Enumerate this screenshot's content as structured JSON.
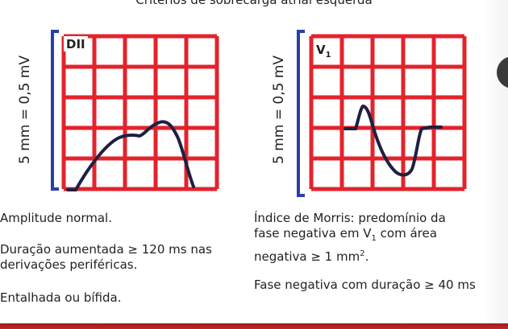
{
  "title": "Critérios de sobrecarga atrial esquerda",
  "panels": [
    {
      "lead": "DII",
      "lead_sub": "",
      "scale_label": "5 mm = 0,5 mV",
      "grid_color": "#e3232c",
      "trace_color": "#1f2040",
      "scale_color": "#2b3fa8"
    },
    {
      "lead": "V",
      "lead_sub": "1",
      "scale_label": "5 mm = 0,5 mV",
      "grid_color": "#e3232c",
      "trace_color": "#1f2040",
      "scale_color": "#2b3fa8"
    }
  ],
  "left_text": {
    "p1": "Amplitude normal.",
    "p2a": "Duração aumentada ≥ 120 ms nas",
    "p2b": "derivações periféricas.",
    "p3": "Entalhada ou bífida."
  },
  "right_text": {
    "p1a": "Índice de Morris: predomínio da",
    "p1b_pre": "fase negativa em V",
    "p1b_sub": "1",
    "p1b_post": " com área",
    "p1c_pre": "negativa ≥ 1 mm",
    "p1c_sup": "2",
    "p1c_post": ".",
    "p2": "Fase negativa com duração ≥ 40 ms"
  }
}
